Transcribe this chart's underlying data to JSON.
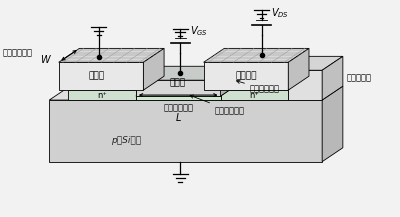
{
  "fig_bg": "#f2f2f2",
  "lc": "#000000",
  "lw": 0.6,
  "colors": {
    "sub_top": "#e0e0e0",
    "sub_front": "#d0d0d0",
    "sub_side": "#b8b8b8",
    "n_top": "#dce8dc",
    "n_front": "#d0e0d0",
    "src_top": "#d8d8d8",
    "src_front": "#e8e8e8",
    "src_side": "#c0c0c0",
    "gate_top": "#c8ccc8",
    "gate_front": "#d8d8d8",
    "gate_side": "#b0b4b0",
    "gox_top": "#c8e0c8",
    "tox_top": "#d5d5d5",
    "tox_front": "#e0e0e0",
    "tox_side": "#c0c0c0"
  },
  "labels": {
    "source": "ソース",
    "drain": "ドレーン",
    "gate": "ゲート",
    "substrate": "p形Si基板",
    "n_src": "n⁺",
    "n_drn": "n⁺",
    "ch_width": "チャンネル幅",
    "W": "W",
    "ch_len": "チャンネル長",
    "L": "L",
    "poly": "ポリシリコン",
    "gateox": "ゲート酸化膜",
    "thickox": "厚い酸化膜"
  }
}
